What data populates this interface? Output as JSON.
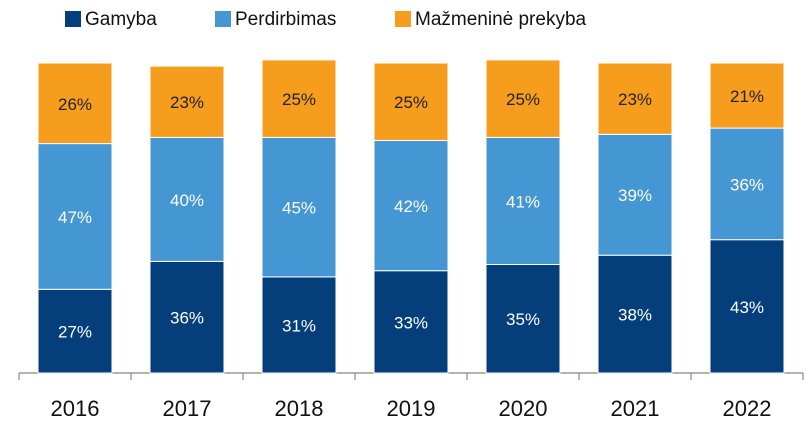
{
  "chart_data": {
    "type": "bar",
    "stacked": true,
    "categories": [
      "2016",
      "2017",
      "2018",
      "2019",
      "2020",
      "2021",
      "2022"
    ],
    "ylim": [
      0,
      100
    ],
    "series": [
      {
        "name": "Gamyba",
        "color": "#053f7b",
        "label_color": "#ffffff",
        "values": [
          27,
          36,
          31,
          33,
          35,
          38,
          43
        ],
        "value_labels": [
          "27%",
          "36%",
          "31%",
          "33%",
          "35%",
          "38%",
          "43%"
        ]
      },
      {
        "name": "Perdirbimas",
        "color": "#4597d3",
        "label_color": "#ffffff",
        "values": [
          47,
          40,
          45,
          42,
          41,
          39,
          36
        ],
        "value_labels": [
          "47%",
          "40%",
          "45%",
          "42%",
          "41%",
          "39%",
          "36%"
        ]
      },
      {
        "name": "Mažmeninė prekyba",
        "color": "#f79d1e",
        "label_color": "#222222",
        "values": [
          26,
          23,
          25,
          25,
          25,
          23,
          21
        ],
        "value_labels": [
          "26%",
          "23%",
          "25%",
          "25%",
          "25%",
          "23%",
          "21%"
        ]
      }
    ],
    "legend": "top"
  }
}
